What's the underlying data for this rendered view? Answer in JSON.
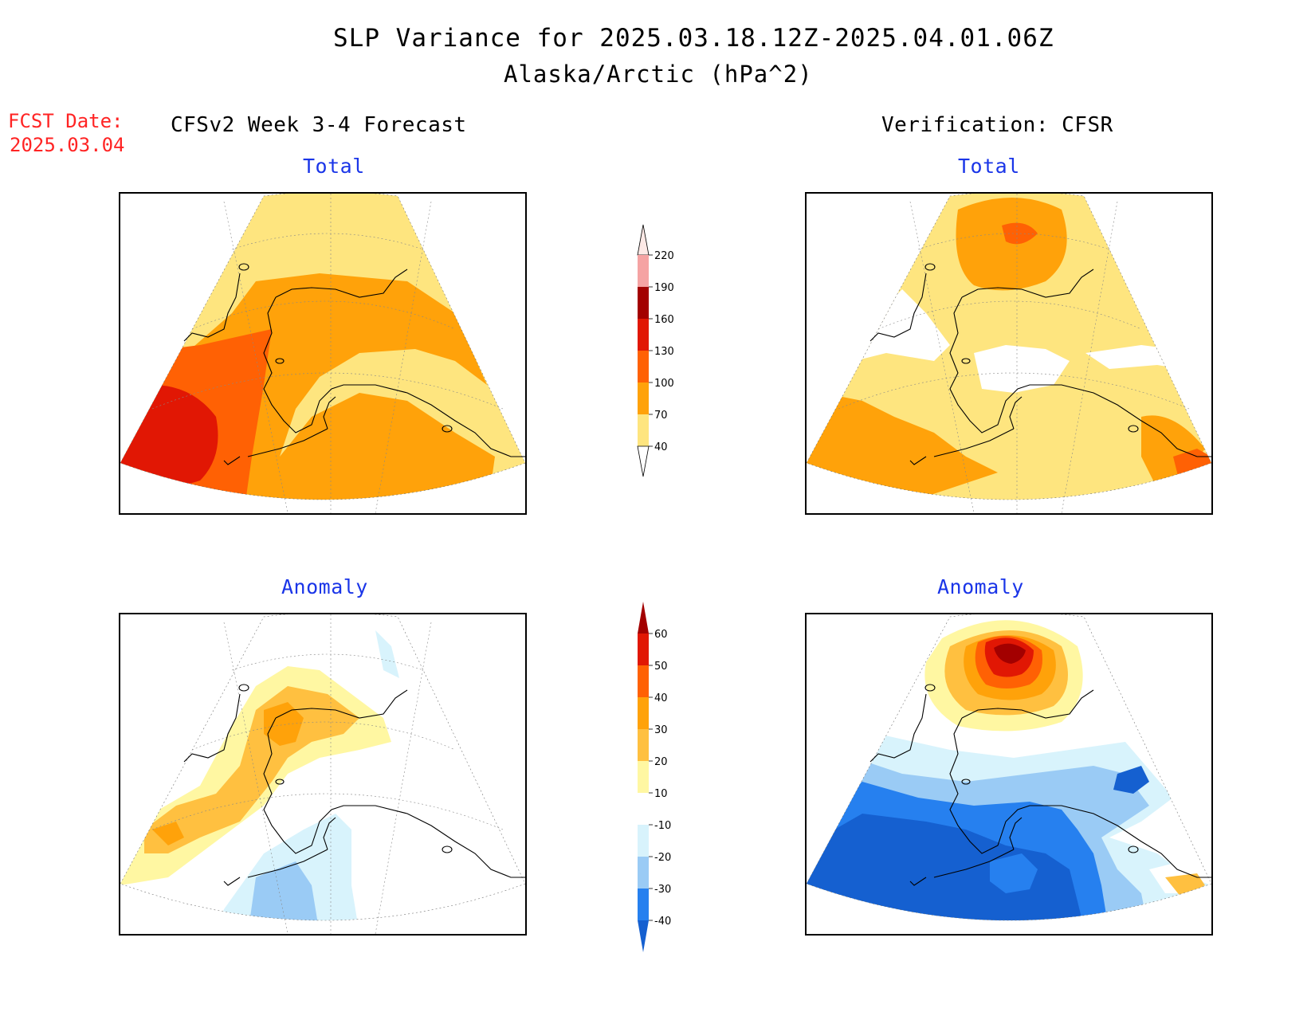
{
  "header": {
    "title": "SLP Variance for 2025.03.18.12Z-2025.04.01.06Z",
    "subtitle": "Alaska/Arctic (hPa^2)"
  },
  "fcst_date": {
    "label": "FCST Date:",
    "value": "2025.03.04"
  },
  "columns": {
    "left": "CFSv2 Week 3-4 Forecast",
    "right": "Verification: CFSR"
  },
  "panels": {
    "forecast_total": "Total",
    "verify_total": "Total",
    "forecast_anomaly": "Anomaly",
    "verify_anomaly": "Anomaly"
  },
  "colorbars": {
    "total": {
      "ticks": [
        "40",
        "70",
        "100",
        "130",
        "160",
        "190",
        "220"
      ],
      "colors": [
        "#fee57f",
        "#ffa20a",
        "#ff6104",
        "#e11704",
        "#a30000",
        "#f5a3a3",
        "#fde9e6"
      ]
    },
    "anomaly": {
      "ticks": [
        "-40",
        "-30",
        "-20",
        "-10",
        "10",
        "20",
        "30",
        "40",
        "50",
        "60"
      ],
      "colors": [
        "#1560d0",
        "#2680ef",
        "#9acbf5",
        "#d8f3fc",
        "#ffffff",
        "#fff7a2",
        "#ffc040",
        "#ffa20a",
        "#ff6104",
        "#e11704",
        "#a30000"
      ]
    }
  },
  "colors": {
    "title_blue": "#1a35e8",
    "fcst_red": "#ff2424"
  }
}
